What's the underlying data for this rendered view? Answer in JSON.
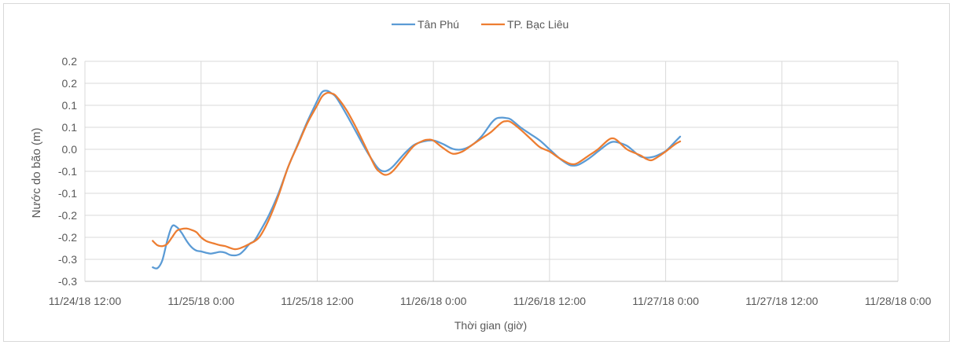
{
  "chart_data": {
    "type": "line",
    "xlabel": "Thời gian (giờ)",
    "ylabel": "Nước do bão (m)",
    "x_unit": "hours",
    "xlim": [
      0,
      84
    ],
    "x_ticks": [
      {
        "value": 0,
        "label": "11/24/18 12:00"
      },
      {
        "value": 12,
        "label": "11/25/18 0:00"
      },
      {
        "value": 24,
        "label": "11/25/18 12:00"
      },
      {
        "value": 36,
        "label": "11/26/18 0:00"
      },
      {
        "value": 48,
        "label": "11/26/18 12:00"
      },
      {
        "value": 60,
        "label": "11/27/18 0:00"
      },
      {
        "value": 72,
        "label": "11/27/18 12:00"
      },
      {
        "value": 84,
        "label": "11/28/18 0:00"
      }
    ],
    "ylim": [
      -0.3,
      0.2
    ],
    "y_ticks": [
      {
        "value": 0.2,
        "label": "0.2"
      },
      {
        "value": 0.15,
        "label": "0.2"
      },
      {
        "value": 0.1,
        "label": "0.1"
      },
      {
        "value": 0.05,
        "label": "0.1"
      },
      {
        "value": 0.0,
        "label": "0.0"
      },
      {
        "value": -0.05,
        "label": "-0.1"
      },
      {
        "value": -0.1,
        "label": "-0.1"
      },
      {
        "value": -0.15,
        "label": "-0.2"
      },
      {
        "value": -0.2,
        "label": "-0.2"
      },
      {
        "value": -0.25,
        "label": "-0.3"
      },
      {
        "value": -0.3,
        "label": "-0.3"
      }
    ],
    "grid": true,
    "legend_position": "top-center",
    "series": [
      {
        "name": "Tân Phú",
        "color": "#5b9bd5",
        "points": [
          [
            7,
            -0.268
          ],
          [
            7.5,
            -0.27
          ],
          [
            8,
            -0.252
          ],
          [
            8.5,
            -0.208
          ],
          [
            9,
            -0.175
          ],
          [
            9.5,
            -0.177
          ],
          [
            10,
            -0.19
          ],
          [
            10.5,
            -0.208
          ],
          [
            11,
            -0.222
          ],
          [
            11.5,
            -0.23
          ],
          [
            12,
            -0.232
          ],
          [
            12.5,
            -0.235
          ],
          [
            13,
            -0.237
          ],
          [
            13.5,
            -0.235
          ],
          [
            14,
            -0.233
          ],
          [
            14.5,
            -0.235
          ],
          [
            15,
            -0.24
          ],
          [
            15.5,
            -0.241
          ],
          [
            16,
            -0.238
          ],
          [
            16.5,
            -0.228
          ],
          [
            17,
            -0.215
          ],
          [
            17.5,
            -0.208
          ],
          [
            18,
            -0.19
          ],
          [
            19,
            -0.15
          ],
          [
            20,
            -0.1
          ],
          [
            21,
            -0.04
          ],
          [
            22,
            0.012
          ],
          [
            23,
            0.064
          ],
          [
            24,
            0.11
          ],
          [
            24.5,
            0.13
          ],
          [
            25,
            0.133
          ],
          [
            25.5,
            0.127
          ],
          [
            26,
            0.117
          ],
          [
            27,
            0.08
          ],
          [
            28,
            0.04
          ],
          [
            29,
            0.0
          ],
          [
            30,
            -0.035
          ],
          [
            30.5,
            -0.047
          ],
          [
            31,
            -0.05
          ],
          [
            31.5,
            -0.045
          ],
          [
            32,
            -0.035
          ],
          [
            33,
            -0.01
          ],
          [
            34,
            0.01
          ],
          [
            35,
            0.018
          ],
          [
            36,
            0.02
          ],
          [
            37,
            0.012
          ],
          [
            38,
            0.001
          ],
          [
            39,
            0.0
          ],
          [
            40,
            0.01
          ],
          [
            41,
            0.03
          ],
          [
            42,
            0.06
          ],
          [
            42.5,
            0.07
          ],
          [
            43,
            0.072
          ],
          [
            43.5,
            0.071
          ],
          [
            44,
            0.068
          ],
          [
            45,
            0.05
          ],
          [
            46,
            0.035
          ],
          [
            47,
            0.02
          ],
          [
            48,
            0.0
          ],
          [
            49,
            -0.02
          ],
          [
            50,
            -0.035
          ],
          [
            50.5,
            -0.037
          ],
          [
            51,
            -0.035
          ],
          [
            52,
            -0.022
          ],
          [
            53,
            -0.005
          ],
          [
            54,
            0.012
          ],
          [
            54.5,
            0.017
          ],
          [
            55,
            0.016
          ],
          [
            56,
            0.008
          ],
          [
            57,
            -0.01
          ],
          [
            57.5,
            -0.017
          ],
          [
            58,
            -0.019
          ],
          [
            58.5,
            -0.018
          ],
          [
            59,
            -0.015
          ],
          [
            60,
            -0.004
          ],
          [
            61,
            0.018
          ],
          [
            61.5,
            0.029
          ]
        ]
      },
      {
        "name": "TP. Bạc Liêu",
        "color": "#ed7d31",
        "points": [
          [
            7,
            -0.208
          ],
          [
            7.5,
            -0.218
          ],
          [
            8,
            -0.22
          ],
          [
            8.5,
            -0.215
          ],
          [
            9,
            -0.2
          ],
          [
            9.5,
            -0.185
          ],
          [
            10,
            -0.181
          ],
          [
            10.5,
            -0.18
          ],
          [
            11,
            -0.183
          ],
          [
            11.5,
            -0.188
          ],
          [
            12,
            -0.2
          ],
          [
            12.5,
            -0.208
          ],
          [
            13,
            -0.212
          ],
          [
            13.5,
            -0.215
          ],
          [
            14,
            -0.218
          ],
          [
            14.5,
            -0.22
          ],
          [
            15,
            -0.224
          ],
          [
            15.5,
            -0.227
          ],
          [
            16,
            -0.225
          ],
          [
            17,
            -0.215
          ],
          [
            18,
            -0.2
          ],
          [
            19,
            -0.16
          ],
          [
            20,
            -0.105
          ],
          [
            21,
            -0.04
          ],
          [
            22,
            0.01
          ],
          [
            23,
            0.06
          ],
          [
            24,
            0.1
          ],
          [
            24.5,
            0.12
          ],
          [
            25,
            0.128
          ],
          [
            25.5,
            0.127
          ],
          [
            26,
            0.12
          ],
          [
            27,
            0.09
          ],
          [
            28,
            0.05
          ],
          [
            29,
            0.005
          ],
          [
            30,
            -0.04
          ],
          [
            30.5,
            -0.052
          ],
          [
            31,
            -0.058
          ],
          [
            31.5,
            -0.055
          ],
          [
            32,
            -0.045
          ],
          [
            33,
            -0.018
          ],
          [
            34,
            0.008
          ],
          [
            35,
            0.02
          ],
          [
            35.5,
            0.022
          ],
          [
            36,
            0.02
          ],
          [
            37,
            0.003
          ],
          [
            38,
            -0.01
          ],
          [
            39,
            -0.005
          ],
          [
            40,
            0.01
          ],
          [
            41,
            0.025
          ],
          [
            42,
            0.04
          ],
          [
            43,
            0.06
          ],
          [
            43.5,
            0.064
          ],
          [
            44,
            0.062
          ],
          [
            45,
            0.045
          ],
          [
            46,
            0.025
          ],
          [
            47,
            0.005
          ],
          [
            48,
            -0.005
          ],
          [
            49,
            -0.02
          ],
          [
            50,
            -0.032
          ],
          [
            50.5,
            -0.034
          ],
          [
            51,
            -0.03
          ],
          [
            52,
            -0.015
          ],
          [
            53,
            0.0
          ],
          [
            54,
            0.02
          ],
          [
            54.5,
            0.025
          ],
          [
            55,
            0.02
          ],
          [
            56,
            0.0
          ],
          [
            57,
            -0.01
          ],
          [
            57.5,
            -0.015
          ],
          [
            58,
            -0.022
          ],
          [
            58.5,
            -0.025
          ],
          [
            59,
            -0.02
          ],
          [
            60,
            -0.005
          ],
          [
            61,
            0.012
          ],
          [
            61.5,
            0.018
          ]
        ]
      }
    ]
  }
}
